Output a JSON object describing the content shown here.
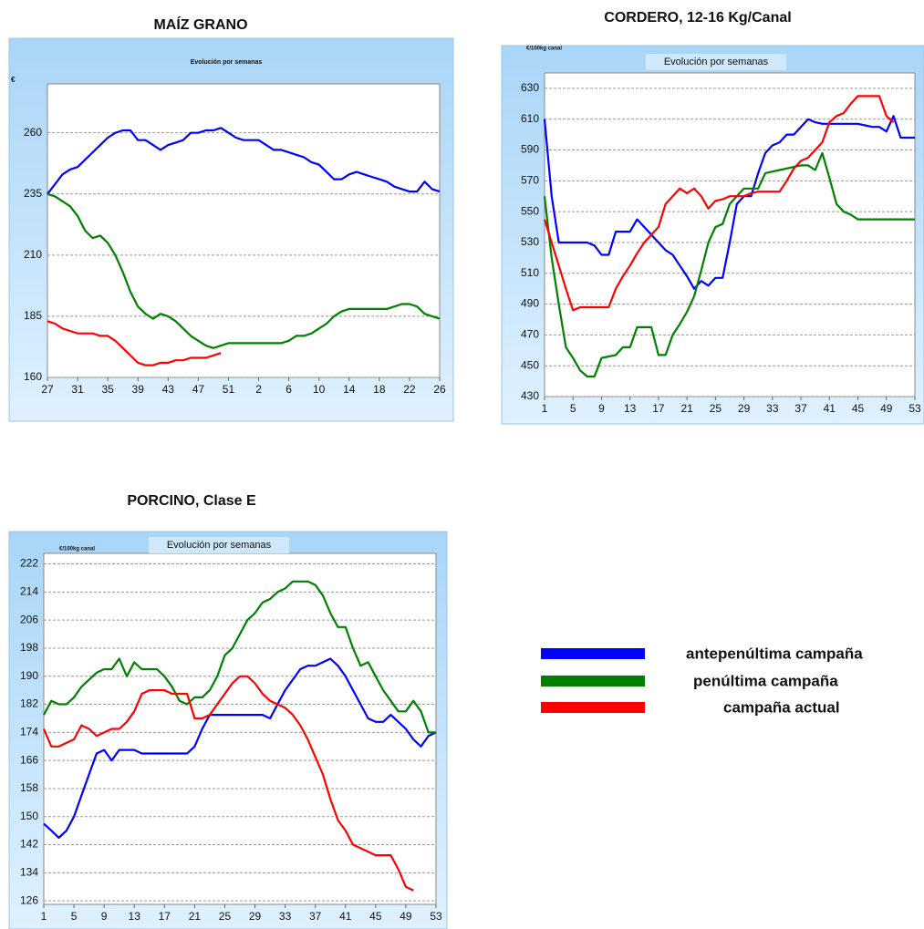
{
  "legend": [
    {
      "name": "antepenúltima campaña",
      "color": "#0000ff"
    },
    {
      "name": "penúltima campaña",
      "color": "#008000"
    },
    {
      "name": "campaña actual",
      "color": "#ff0000"
    }
  ],
  "chart_data": [
    {
      "type": "line",
      "title": "MAÍZ GRANO",
      "subtitle": "Evolución por semanas",
      "y_label": "€",
      "categories": [
        "27",
        null,
        null,
        null,
        "31",
        null,
        null,
        null,
        "35",
        null,
        null,
        null,
        "39",
        null,
        null,
        null,
        "43",
        null,
        null,
        null,
        "47",
        null,
        null,
        null,
        "51",
        null,
        null,
        null,
        "2",
        null,
        null,
        null,
        "6",
        null,
        null,
        null,
        "10",
        null,
        null,
        null,
        "14",
        null,
        null,
        null,
        "18",
        null,
        null,
        null,
        "22",
        null,
        null,
        null,
        "26"
      ],
      "ylim": [
        160,
        280
      ],
      "yticks": [
        160,
        185,
        210,
        235,
        260
      ],
      "grid": true,
      "series": [
        {
          "color": "#0000ff",
          "values": [
            235,
            239,
            243,
            245,
            246,
            249,
            252,
            255,
            258,
            260,
            261,
            261,
            257,
            257,
            255,
            253,
            255,
            256,
            257,
            260,
            260,
            261,
            261,
            262,
            260,
            258,
            257,
            257,
            257,
            255,
            253,
            253,
            252,
            251,
            250,
            248,
            247,
            244,
            241,
            241,
            243,
            244,
            243,
            242,
            241,
            240,
            238,
            237,
            236,
            236,
            240,
            237,
            236
          ]
        },
        {
          "color": "#008000",
          "values": [
            235,
            234,
            232,
            230,
            226,
            220,
            217,
            218,
            215,
            210,
            203,
            195,
            189,
            186,
            184,
            186,
            185,
            183,
            180,
            177,
            175,
            173,
            172,
            173,
            174,
            174,
            174,
            174,
            174,
            174,
            174,
            174,
            175,
            177,
            177,
            178,
            180,
            182,
            185,
            187,
            188,
            188,
            188,
            188,
            188,
            188,
            189,
            190,
            190,
            189,
            186,
            185,
            184
          ]
        },
        {
          "color": "#ff0000",
          "values": [
            183,
            182,
            180,
            179,
            178,
            178,
            178,
            177,
            177,
            175,
            172,
            169,
            166,
            165,
            165,
            166,
            166,
            167,
            167,
            168,
            168,
            168,
            169,
            170,
            null,
            null,
            null,
            null,
            null,
            null,
            null,
            null,
            null,
            null,
            null,
            null,
            null,
            null,
            null,
            null,
            null,
            null,
            null,
            null,
            null,
            null,
            null,
            null,
            null,
            null,
            null,
            null,
            null
          ]
        }
      ]
    },
    {
      "type": "line",
      "title": "CORDERO, 12-16 Kg/Canal",
      "subtitle": "Evolución por semanas",
      "y_label": "€/100kg canal",
      "categories": [
        "1",
        null,
        null,
        null,
        "5",
        null,
        null,
        null,
        "9",
        null,
        null,
        null,
        "13",
        null,
        null,
        null,
        "17",
        null,
        null,
        null,
        "21",
        null,
        null,
        null,
        "25",
        null,
        null,
        null,
        "29",
        null,
        null,
        null,
        "33",
        null,
        null,
        null,
        "37",
        null,
        null,
        null,
        "41",
        null,
        null,
        null,
        "45",
        null,
        null,
        null,
        "49",
        null,
        null,
        null,
        "53"
      ],
      "ylim": [
        430,
        640
      ],
      "yticks": [
        430,
        450,
        470,
        490,
        510,
        530,
        550,
        570,
        590,
        610,
        630
      ],
      "grid": true,
      "series": [
        {
          "color": "#0000ff",
          "values": [
            610,
            560,
            530,
            530,
            530,
            530,
            530,
            528,
            522,
            522,
            537,
            537,
            537,
            545,
            540,
            535,
            530,
            525,
            522,
            515,
            508,
            500,
            505,
            502,
            507,
            507,
            530,
            555,
            560,
            560,
            575,
            588,
            593,
            595,
            600,
            600,
            605,
            610,
            608,
            607,
            607,
            607,
            607,
            607,
            607,
            606,
            605,
            605,
            602,
            612,
            598,
            598,
            598
          ]
        },
        {
          "color": "#008000",
          "values": [
            560,
            520,
            490,
            462,
            455,
            447,
            443,
            443,
            455,
            456,
            457,
            462,
            462,
            475,
            475,
            475,
            457,
            457,
            470,
            477,
            485,
            495,
            512,
            530,
            540,
            542,
            555,
            560,
            565,
            565,
            565,
            575,
            576,
            577,
            578,
            579,
            580,
            580,
            577,
            588,
            572,
            555,
            550,
            548,
            545,
            545,
            545,
            545,
            545,
            545,
            545,
            545,
            545
          ]
        },
        {
          "color": "#ff0000",
          "values": [
            545,
            530,
            515,
            500,
            486,
            488,
            488,
            488,
            488,
            488,
            500,
            508,
            515,
            523,
            530,
            535,
            540,
            555,
            560,
            565,
            562,
            565,
            560,
            552,
            557,
            558,
            560,
            560,
            560,
            562,
            563,
            563,
            563,
            563,
            570,
            578,
            583,
            585,
            590,
            595,
            608,
            612,
            614,
            620,
            625,
            625,
            625,
            625,
            612,
            608,
            null,
            null,
            null
          ]
        }
      ]
    },
    {
      "type": "line",
      "title": "PORCINO, Clase E",
      "subtitle": "Evolución por semanas",
      "y_label": "€/100kg canal",
      "categories": [
        "1",
        null,
        null,
        null,
        "5",
        null,
        null,
        null,
        "9",
        null,
        null,
        null,
        "13",
        null,
        null,
        null,
        "17",
        null,
        null,
        null,
        "21",
        null,
        null,
        null,
        "25",
        null,
        null,
        null,
        "29",
        null,
        null,
        null,
        "33",
        null,
        null,
        null,
        "37",
        null,
        null,
        null,
        "41",
        null,
        null,
        null,
        "45",
        null,
        null,
        null,
        "49",
        null,
        null,
        null,
        "53"
      ],
      "ylim": [
        125,
        225
      ],
      "yticks": [
        126,
        134,
        142,
        150,
        158,
        166,
        174,
        182,
        190,
        198,
        206,
        214,
        222
      ],
      "grid": true,
      "series": [
        {
          "color": "#0000ff",
          "values": [
            148,
            146,
            144,
            146,
            150,
            156,
            162,
            168,
            169,
            166,
            169,
            169,
            169,
            168,
            168,
            168,
            168,
            168,
            168,
            168,
            170,
            175,
            179,
            179,
            179,
            179,
            179,
            179,
            179,
            179,
            178,
            182,
            186,
            189,
            192,
            193,
            193,
            194,
            195,
            193,
            190,
            186,
            182,
            178,
            177,
            177,
            179,
            177,
            175,
            172,
            170,
            173,
            174
          ]
        },
        {
          "color": "#008000",
          "values": [
            179,
            183,
            182,
            182,
            184,
            187,
            189,
            191,
            192,
            192,
            195,
            190,
            194,
            192,
            192,
            192,
            190,
            187,
            183,
            182,
            184,
            184,
            186,
            190,
            196,
            198,
            202,
            206,
            208,
            211,
            212,
            214,
            215,
            217,
            217,
            217,
            216,
            213,
            208,
            204,
            204,
            198,
            193,
            194,
            190,
            186,
            183,
            180,
            180,
            183,
            180,
            174,
            174
          ]
        },
        {
          "color": "#ff0000",
          "values": [
            175,
            170,
            170,
            171,
            172,
            176,
            175,
            173,
            174,
            175,
            175,
            177,
            180,
            185,
            186,
            186,
            186,
            185,
            185,
            185,
            178,
            178,
            179,
            182,
            185,
            188,
            190,
            190,
            188,
            185,
            183,
            182,
            181,
            179,
            176,
            172,
            167,
            162,
            155,
            149,
            146,
            142,
            141,
            140,
            139,
            139,
            139,
            135,
            130,
            129,
            null,
            null,
            null
          ]
        }
      ]
    }
  ]
}
